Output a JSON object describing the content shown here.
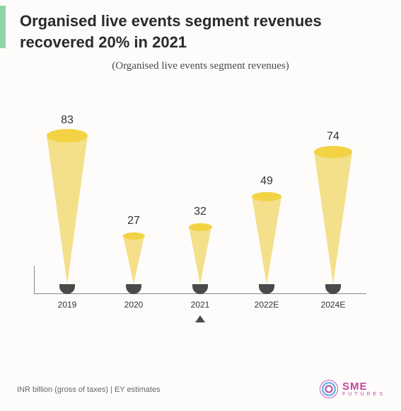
{
  "title": "Organised live events segment revenues recovered 20% in 2021",
  "subtitle": "(Organised live events segment revenues)",
  "footnote": "INR billion (gross of taxes) | EY estimates",
  "logo": {
    "main": "SME",
    "sub": "FUTURES"
  },
  "chart": {
    "type": "cone-bar",
    "ymax": 83,
    "cone_top_fill": "#f2d344",
    "cone_body_fill": "#f4df8a",
    "base_fill": "#4a4a4a",
    "baseline_color": "#888888",
    "value_fontsize": 16,
    "category_fontsize": 12,
    "marker_index": 2,
    "categories": [
      "2019",
      "2020",
      "2021",
      "2022E",
      "2024E"
    ],
    "values": [
      83,
      27,
      32,
      49,
      74
    ]
  }
}
